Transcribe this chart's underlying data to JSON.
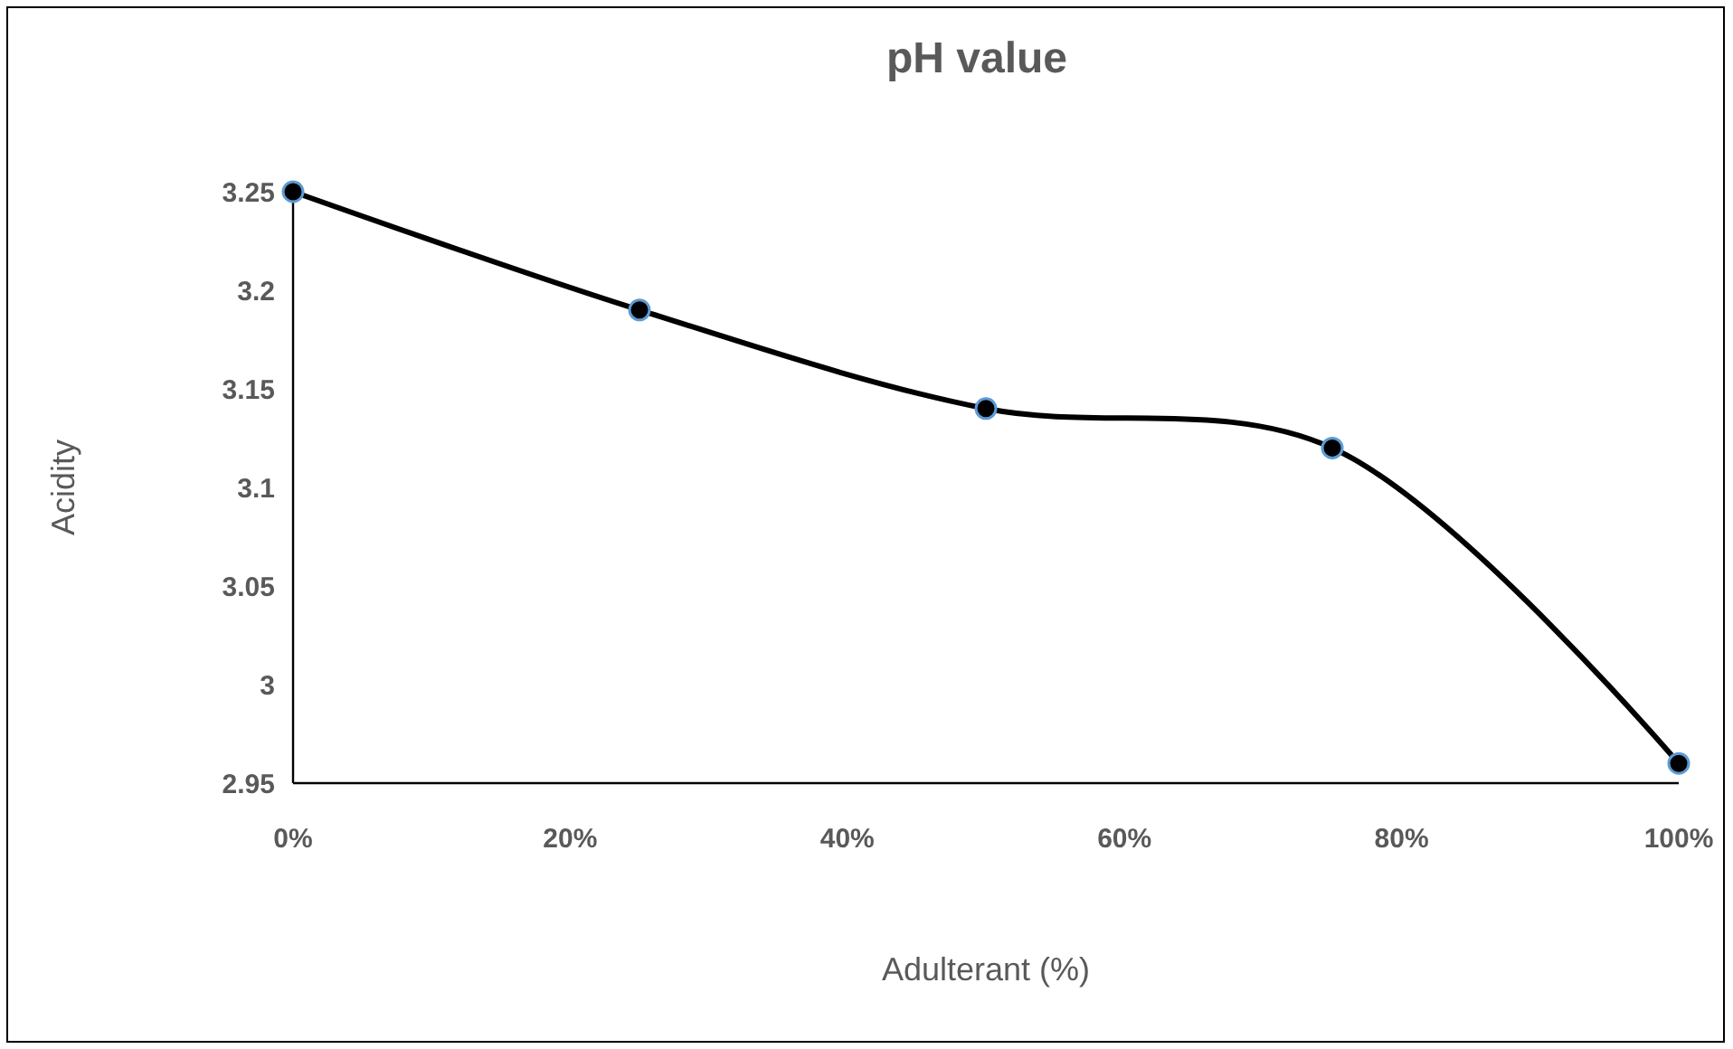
{
  "chart_data": {
    "type": "line",
    "title": "pH value",
    "xlabel": "Adulterant (%)",
    "ylabel": "Acidity",
    "x": [
      0,
      25,
      50,
      75,
      100
    ],
    "series": [
      {
        "color": "#000000",
        "values": [
          3.25,
          3.19,
          3.14,
          3.12,
          2.96
        ]
      }
    ],
    "xlim": [
      0,
      100
    ],
    "xticks": [
      {
        "value": 0,
        "label": "0%"
      },
      {
        "value": 20,
        "label": "20%"
      },
      {
        "value": 40,
        "label": "40%"
      },
      {
        "value": 60,
        "label": "60%"
      },
      {
        "value": 80,
        "label": "80%"
      },
      {
        "value": 100,
        "label": "100%"
      }
    ],
    "ylim": [
      2.95,
      3.25
    ],
    "yticks": [
      2.95,
      3,
      3.05,
      3.1,
      3.15,
      3.2,
      3.25
    ],
    "grid": false,
    "marker": "circle",
    "line_style": "solid"
  }
}
